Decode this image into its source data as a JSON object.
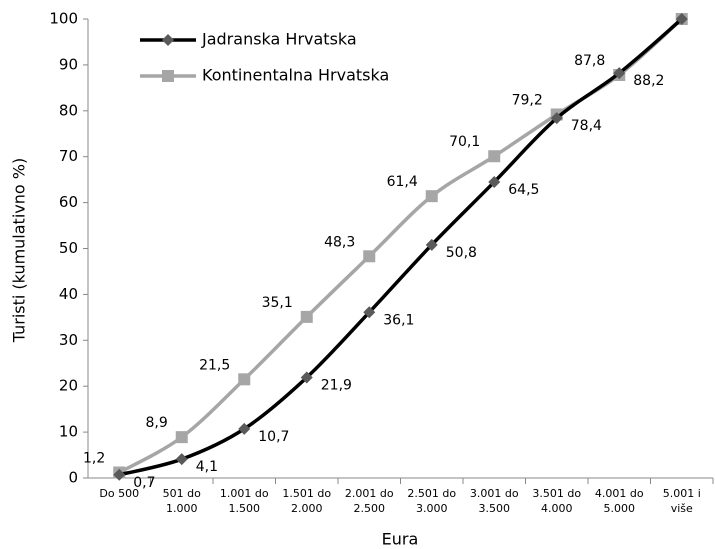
{
  "chart_data": {
    "type": "line",
    "xlabel": "Eura",
    "ylabel": "Turisti (kumulativno %)",
    "categories": [
      "Do 500",
      "501 do 1.000",
      "1.001 do 1.500",
      "1.501 do 2.000",
      "2.001 do 2.500",
      "2.501 do 3.000",
      "3.001 do 3.500",
      "3.501 do 4.000",
      "4.001 do 5.000",
      "5.001 i više"
    ],
    "series": [
      {
        "name": "Jadranska Hrvatska",
        "color": "#000000",
        "marker_color": "#5a5a5a",
        "marker": "diamond",
        "values": [
          0.7,
          4.1,
          10.7,
          21.9,
          36.1,
          50.8,
          64.5,
          78.4,
          88.2,
          100
        ],
        "value_labels": [
          "0,7",
          "4,1",
          "10,7",
          "21,9",
          "36,1",
          "50,8",
          "64,5",
          "78,4",
          "88,2",
          null
        ]
      },
      {
        "name": "Kontinentalna Hrvatska",
        "color": "#a6a6a6",
        "marker_color": "#a6a6a6",
        "marker": "square",
        "values": [
          1.2,
          8.9,
          21.5,
          35.1,
          48.3,
          61.4,
          70.1,
          79.2,
          87.8,
          100
        ],
        "value_labels": [
          "1,2",
          "8,9",
          "21,5",
          "35,1",
          "48,3",
          "61,4",
          "70,1",
          "79,2",
          "87,8",
          null
        ]
      }
    ],
    "ylim": [
      0,
      100
    ],
    "yticks": [
      0,
      10,
      20,
      30,
      40,
      50,
      60,
      70,
      80,
      90,
      100
    ],
    "grid": false,
    "legend": "upper left"
  }
}
